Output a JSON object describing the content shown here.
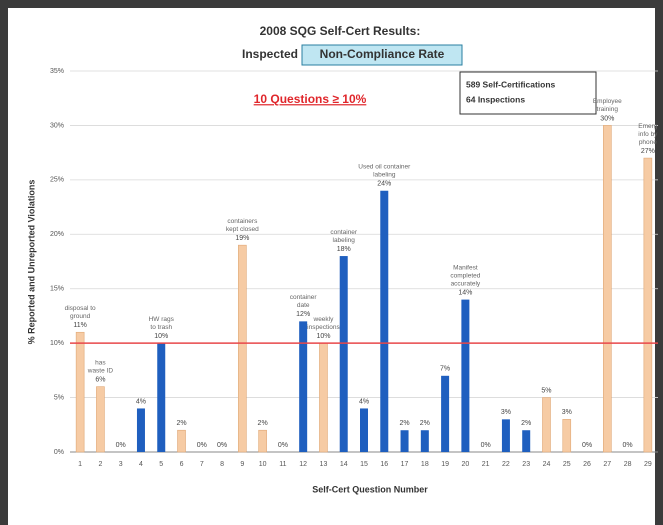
{
  "chart_data": {
    "type": "bar",
    "title": "2008 SQG Self-Cert Results:",
    "title_line2_plain": "Inspected",
    "title_line2_highlight": "Non-Compliance Rate",
    "subtitle": "10 Questions ≥ 10%",
    "info_box": [
      "589 Self-Certifications",
      "64 Inspections"
    ],
    "x_label": "Self-Cert Question Number",
    "y_label": "% Reported and Unreported Violations",
    "categories": [
      "1",
      "2",
      "3",
      "4",
      "5",
      "6",
      "7",
      "8",
      "9",
      "10",
      "11",
      "12",
      "13",
      "14",
      "15",
      "16",
      "17",
      "18",
      "19",
      "20",
      "21",
      "22",
      "23",
      "24",
      "25",
      "26",
      "27",
      "28",
      "29"
    ],
    "values": [
      11,
      6,
      0,
      4,
      10,
      2,
      0,
      0,
      19,
      2,
      0,
      12,
      10,
      18,
      4,
      24,
      2,
      2,
      7,
      14,
      0,
      3,
      2,
      5,
      3,
      0,
      30,
      0,
      27
    ],
    "value_labels": [
      "11%",
      "6%",
      "0%",
      "4%",
      "10%",
      "2%",
      "0%",
      "0%",
      "19%",
      "2%",
      "0%",
      "12%",
      "10%",
      "18%",
      "4%",
      "24%",
      "2%",
      "2%",
      "7%",
      "14%",
      "0%",
      "3%",
      "2%",
      "5%",
      "3%",
      "0%",
      "30%",
      "0%",
      "27%"
    ],
    "colors": [
      "#f6cba4",
      "#f6cba4",
      "#f6cba4",
      "#1f5fbf",
      "#1f5fbf",
      "#f6cba4",
      "#f6cba4",
      "#f6cba4",
      "#f6cba4",
      "#f6cba4",
      "#f6cba4",
      "#1f5fbf",
      "#f6cba4",
      "#1f5fbf",
      "#1f5fbf",
      "#1f5fbf",
      "#1f5fbf",
      "#1f5fbf",
      "#1f5fbf",
      "#1f5fbf",
      "#1f5fbf",
      "#1f5fbf",
      "#1f5fbf",
      "#f6cba4",
      "#f6cba4",
      "#f6cba4",
      "#f6cba4",
      "#f6cba4",
      "#f6cba4"
    ],
    "threshold": 10,
    "threshold_color": "#e8474a",
    "ylim": [
      0,
      35
    ],
    "yticks": [
      {
        "value": 0,
        "label": "0%"
      },
      {
        "value": 5,
        "label": "5%"
      },
      {
        "value": 10,
        "label": "10%"
      },
      {
        "value": 15,
        "label": "15%"
      },
      {
        "value": 20,
        "label": "20%"
      },
      {
        "value": 25,
        "label": "25%"
      },
      {
        "value": 30,
        "label": "30%"
      },
      {
        "value": 35,
        "label": "35%"
      }
    ],
    "grid": true,
    "annotations": [
      {
        "x": "1",
        "lines": [
          "disposal to",
          "ground"
        ]
      },
      {
        "x": "2",
        "lines": [
          "has",
          "waste ID"
        ]
      },
      {
        "x": "5",
        "lines": [
          "HW rags",
          "to trash"
        ]
      },
      {
        "x": "9",
        "lines": [
          "containers",
          "kept closed"
        ]
      },
      {
        "x": "12",
        "lines": [
          "container",
          "date"
        ]
      },
      {
        "x": "13",
        "lines": [
          "weekly",
          "inspections"
        ]
      },
      {
        "x": "14",
        "lines": [
          "container",
          "labeling"
        ]
      },
      {
        "x": "16",
        "lines": [
          "Used oil container",
          "labeling"
        ]
      },
      {
        "x": "20",
        "lines": [
          "Manifest",
          "completed",
          "accurately"
        ]
      },
      {
        "x": "27",
        "lines": [
          "Employee",
          "training"
        ]
      },
      {
        "x": "29",
        "lines": [
          "Emerg",
          "info by",
          "phone"
        ]
      }
    ]
  }
}
